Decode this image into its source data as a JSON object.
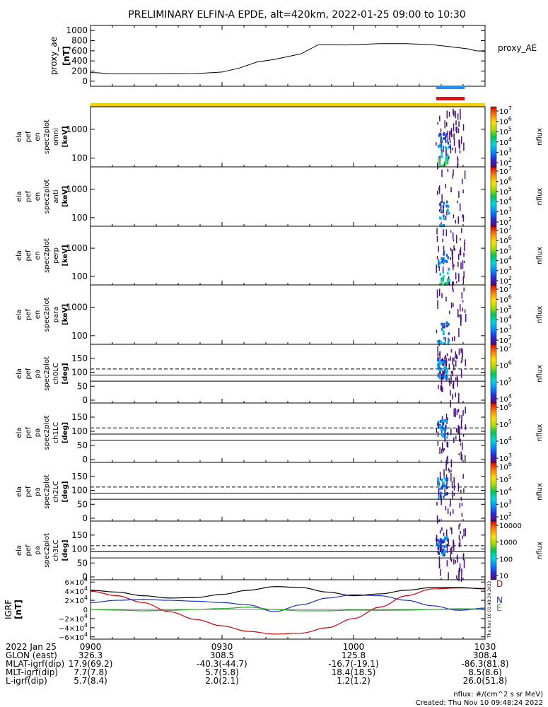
{
  "title": "PRELIMINARY ELFIN-A EPDE, alt=420km, 2022-01-25 09:00 to 10:30",
  "colors": {
    "yellow_bar": "#f5d000",
    "blue_bar": "#1e90ff",
    "red_bar": "#e01010",
    "ae_line": "#000000",
    "igrf_black": "#000000",
    "igrf_blue": "#1a2fd0",
    "igrf_green": "#22b022",
    "igrf_red": "#d00000"
  },
  "chart_data": [
    {
      "id": "proxy_ae",
      "type": "line",
      "ylabel": [
        "proxy_ae",
        "[nT]"
      ],
      "legend": "proxy_AE",
      "ylim": [
        -100,
        1100
      ],
      "yticks": [
        "1000",
        "800",
        "600",
        "400",
        "200",
        "0"
      ],
      "x": [
        0,
        2,
        4,
        8,
        15,
        24,
        30,
        34,
        38,
        42,
        48,
        52,
        56,
        58,
        60,
        66,
        72,
        78,
        82,
        86,
        88,
        90
      ],
      "values": [
        170,
        165,
        145,
        145,
        145,
        150,
        180,
        260,
        380,
        430,
        540,
        720,
        720,
        715,
        720,
        740,
        740,
        720,
        680,
        640,
        600,
        590
      ]
    },
    {
      "id": "en_omni",
      "type": "heatmap",
      "ylabel": [
        "ela",
        "pef",
        "en",
        "spec2plot",
        "omni",
        "[keV]"
      ],
      "yticks": [
        "1000",
        "100"
      ],
      "colorbar": {
        "label": "nflux",
        "ticks": [
          "10^7",
          "10^6",
          "10^5",
          "10^4",
          "10^3",
          "10^2"
        ]
      }
    },
    {
      "id": "en_anti",
      "type": "heatmap",
      "ylabel": [
        "ela",
        "pef",
        "en",
        "spec2plot",
        "anti",
        "[keV]"
      ],
      "yticks": [
        "1000",
        "100"
      ],
      "colorbar": {
        "label": "nflux",
        "ticks": [
          "10^7",
          "10^6",
          "10^5",
          "10^4",
          "10^3",
          "10^2"
        ]
      }
    },
    {
      "id": "en_perp",
      "type": "heatmap",
      "ylabel": [
        "ela",
        "pef",
        "en",
        "spec2plot",
        "perp",
        "[keV]"
      ],
      "yticks": [
        "1000",
        "100"
      ],
      "colorbar": {
        "label": "nflux",
        "ticks": [
          "10^7",
          "10^6",
          "10^5",
          "10^4",
          "10^3",
          "10^2"
        ]
      }
    },
    {
      "id": "en_para",
      "type": "heatmap",
      "ylabel": [
        "ela",
        "pef",
        "en",
        "spec2plot",
        "para",
        "[keV]"
      ],
      "yticks": [
        "1000",
        "100"
      ],
      "colorbar": {
        "label": "nflux",
        "ticks": [
          "10^7",
          "10^6",
          "10^5",
          "10^4",
          "10^3",
          "10^2"
        ]
      }
    },
    {
      "id": "pa_ch0",
      "type": "heatmap",
      "ylabel": [
        "ela",
        "pef",
        "pa",
        "spec2plot",
        "ch0LC",
        "[deg]"
      ],
      "yticks": [
        "150",
        "100",
        "50",
        "0"
      ],
      "colorbar": {
        "label": "nflux",
        "ticks": [
          "10^7",
          "10^6",
          "10^5",
          "10^4"
        ]
      }
    },
    {
      "id": "pa_ch1",
      "type": "heatmap",
      "ylabel": [
        "ela",
        "pef",
        "pa",
        "spec2plot",
        "ch1LC",
        "[deg]"
      ],
      "yticks": [
        "150",
        "100",
        "50",
        "0"
      ],
      "colorbar": {
        "label": "nflux",
        "ticks": [
          "10^6",
          "10^5",
          "10^4",
          "10^3"
        ]
      }
    },
    {
      "id": "pa_ch2",
      "type": "heatmap",
      "ylabel": [
        "ela",
        "pef",
        "pa",
        "spec2plot",
        "ch2LC",
        "[deg]"
      ],
      "yticks": [
        "150",
        "100",
        "50",
        "0"
      ],
      "colorbar": {
        "label": "nflux",
        "ticks": [
          "10^6",
          "10^5",
          "10^4",
          "10^3",
          "10^2"
        ]
      }
    },
    {
      "id": "pa_ch3",
      "type": "heatmap",
      "ylabel": [
        "ela",
        "pef",
        "pa",
        "spec2plot",
        "ch3LC",
        "[deg]"
      ],
      "yticks": [
        "150",
        "100",
        "50",
        "0"
      ],
      "colorbar": {
        "label": "nflux",
        "ticks": [
          "10000",
          "1000",
          "100",
          "10"
        ]
      }
    },
    {
      "id": "igrf",
      "type": "line",
      "ylabel": [
        "IGRF",
        "[nT]"
      ],
      "ylim": [
        -65000,
        65000
      ],
      "yticks": [
        "6×10^4",
        "4×10^4",
        "2×10^4",
        "0",
        "−2×10^4",
        "−4×10^4",
        "−6×10^4"
      ],
      "x": [
        0,
        6,
        12,
        18,
        24,
        30,
        36,
        42,
        48,
        54,
        60,
        66,
        72,
        78,
        84,
        90
      ],
      "series": [
        {
          "name": "D",
          "color": "#d00000",
          "values": [
            40000,
            30000,
            15000,
            -5000,
            -22000,
            -36000,
            -48000,
            -54000,
            -52000,
            -40000,
            -20000,
            5000,
            30000,
            45000,
            47000,
            46000
          ]
        },
        {
          "name": "N",
          "color": "#1a2fd0",
          "values": [
            15000,
            20000,
            22000,
            20000,
            18000,
            15000,
            10000,
            -5000,
            10000,
            25000,
            32000,
            30000,
            20000,
            8000,
            -2000,
            3000
          ]
        },
        {
          "name": "E",
          "color": "#22b022",
          "values": [
            0,
            -1500,
            -3000,
            -2000,
            0,
            2000,
            5000,
            0,
            -3000,
            -3000,
            -1500,
            -2000,
            -1500,
            0,
            1500,
            1000
          ]
        },
        {
          "name": "",
          "color": "#000000",
          "values": [
            42000,
            38000,
            30000,
            25000,
            26000,
            33000,
            42000,
            50000,
            48000,
            38000,
            30000,
            34000,
            42000,
            48000,
            48000,
            45000
          ]
        }
      ],
      "stamp": "Thu Nov 10 01:48:24 2022"
    }
  ],
  "xaxis": {
    "rows": [
      {
        "label": "2022 Jan 25",
        "values": [
          "0900",
          "0930",
          "1000",
          "1030"
        ]
      },
      {
        "label": "GLON (east)",
        "values": [
          "326.3",
          "308.5",
          "125.8",
          "308.4"
        ]
      },
      {
        "label": "MLAT-igrf(dip)",
        "values": [
          "17.9(69.2)",
          "-40.3(-44.7)",
          "-16.7(-19.1)",
          "-86.3(81.8)"
        ]
      },
      {
        "label": "MLT-igrf(dip)",
        "values": [
          "7.7(7.8)",
          "5.7(5.8)",
          "18.4(18.5)",
          "8.5(8.6)"
        ]
      },
      {
        "label": "L-igrf(dip)",
        "values": [
          "5.7(8.4)",
          "2.0(2.1)",
          "1.2(1.2)",
          "26.0(51.8)"
        ]
      }
    ]
  },
  "footer": {
    "units": "nflux: #/(cm^2 s sr MeV)",
    "created": "Created: Thu Nov 10 09:48:24 2022"
  }
}
